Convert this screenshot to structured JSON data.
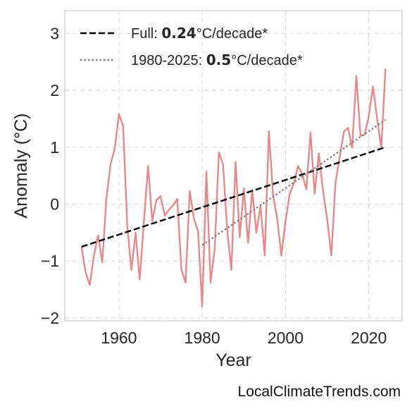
{
  "chart_data": {
    "type": "line",
    "xlabel": "Year",
    "ylabel": "Anomaly (°C)",
    "xlim": [
      1947,
      2028
    ],
    "ylim": [
      -2.05,
      3.4
    ],
    "x_ticks": [
      1960,
      1980,
      2000,
      2020
    ],
    "y_ticks": [
      -2,
      -1,
      0,
      1,
      2,
      3
    ],
    "grid": true,
    "legend_position": "top-left",
    "series": [
      {
        "style": "solid",
        "color": "#e8888a",
        "x": [
          1951,
          1952,
          1953,
          1954,
          1955,
          1956,
          1957,
          1958,
          1959,
          1960,
          1961,
          1962,
          1963,
          1964,
          1965,
          1966,
          1967,
          1968,
          1969,
          1970,
          1971,
          1972,
          1973,
          1974,
          1975,
          1976,
          1977,
          1978,
          1979,
          1980,
          1981,
          1982,
          1983,
          1984,
          1985,
          1986,
          1987,
          1988,
          1989,
          1990,
          1991,
          1992,
          1993,
          1994,
          1995,
          1996,
          1997,
          1998,
          1999,
          2000,
          2001,
          2002,
          2003,
          2004,
          2005,
          2006,
          2007,
          2008,
          2009,
          2010,
          2011,
          2012,
          2013,
          2014,
          2015,
          2016,
          2017,
          2018,
          2019,
          2020,
          2021,
          2022,
          2023,
          2024
        ],
        "y": [
          -0.75,
          -1.2,
          -1.42,
          -0.9,
          -0.55,
          -1.02,
          0.1,
          0.7,
          0.98,
          1.58,
          1.38,
          -0.38,
          -1.16,
          -0.5,
          -1.32,
          -0.3,
          0.67,
          -0.3,
          0.07,
          0.14,
          -0.2,
          -0.1,
          -0.02,
          0.09,
          -1.15,
          -1.38,
          0.23,
          -0.25,
          -0.48,
          -1.8,
          0.57,
          -1.38,
          -0.78,
          0.91,
          0.7,
          -0.45,
          -1.16,
          0.74,
          -0.58,
          0.28,
          -0.68,
          0.25,
          -0.5,
          -0.03,
          -0.9,
          1.28,
          0.16,
          -0.25,
          -0.9,
          -0.3,
          0.18,
          0.36,
          0.67,
          0.53,
          0.26,
          1.26,
          0.18,
          0.89,
          0.25,
          -0.27,
          -0.9,
          0.38,
          0.82,
          1.27,
          1.34,
          0.99,
          2.25,
          1.2,
          1.22,
          1.55,
          2.07,
          1.5,
          0.98,
          2.38
        ]
      },
      {
        "name": "Full: {b}0.24{/b}°C/decade*",
        "style": "dashed",
        "color": "#000000",
        "x": [
          1951,
          2024
        ],
        "y": [
          -0.75,
          1.0
        ]
      },
      {
        "name": "1980-2025: {b}0.5{/b}°C/decade*",
        "style": "dotted",
        "color": "#808080",
        "x": [
          1980,
          2024
        ],
        "y": [
          -0.72,
          1.48
        ]
      }
    ]
  },
  "footer": {
    "credit": "LocalClimateTrends.com"
  }
}
